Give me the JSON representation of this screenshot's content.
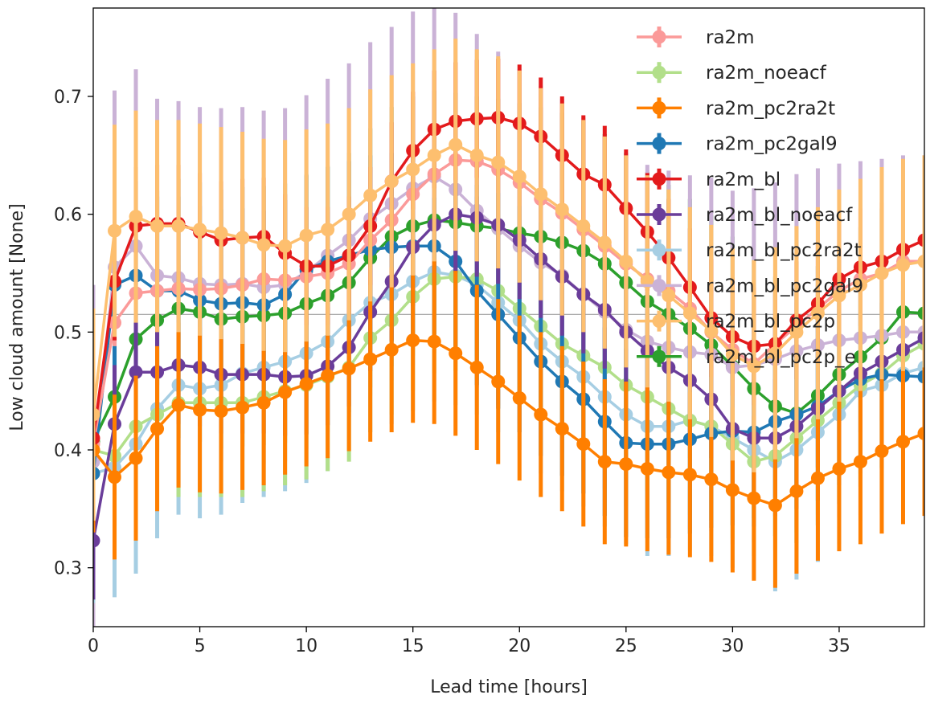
{
  "chart_data": {
    "type": "line",
    "title": "",
    "xlabel": "Lead time [hours]",
    "ylabel": "Low cloud amount [None]",
    "xlim": [
      0,
      39
    ],
    "ylim": [
      0.25,
      0.775
    ],
    "xticks": [
      0,
      5,
      10,
      15,
      20,
      25,
      30,
      35
    ],
    "yticks": [
      0.3,
      0.4,
      0.5,
      0.6,
      0.7
    ],
    "hline": 0.515,
    "grid": false,
    "legend_position": "top-right",
    "x": [
      0,
      1,
      2,
      3,
      4,
      5,
      6,
      7,
      8,
      9,
      10,
      11,
      12,
      13,
      14,
      15,
      16,
      17,
      18,
      19,
      20,
      21,
      22,
      23,
      24,
      25,
      26,
      27,
      28,
      29,
      30,
      31,
      32,
      33,
      34,
      35,
      36,
      37,
      38,
      39
    ],
    "series": [
      {
        "name": "ra2m_bl_pc2p_e",
        "color": "#2ca02c",
        "values": [
          0.407,
          0.445,
          0.494,
          0.51,
          0.52,
          0.517,
          0.511,
          0.513,
          0.514,
          0.516,
          0.524,
          0.531,
          0.542,
          0.563,
          0.581,
          0.59,
          0.595,
          0.593,
          0.59,
          0.588,
          0.584,
          0.581,
          0.576,
          0.569,
          0.558,
          0.542,
          0.526,
          0.515,
          0.503,
          0.489,
          0.471,
          0.452,
          0.437,
          0.431,
          0.446,
          0.464,
          0.479,
          0.495,
          0.517,
          0.516
        ],
        "err": 0.11
      },
      {
        "name": "ra2m_bl_pc2gal9",
        "color": "#cab2d6",
        "values": [
          0.39,
          0.555,
          0.573,
          0.548,
          0.546,
          0.541,
          0.54,
          0.541,
          0.538,
          0.54,
          0.551,
          0.565,
          0.578,
          0.596,
          0.609,
          0.622,
          0.632,
          0.621,
          0.603,
          0.588,
          0.573,
          0.559,
          0.548,
          0.532,
          0.517,
          0.502,
          0.492,
          0.487,
          0.483,
          0.481,
          0.47,
          0.472,
          0.477,
          0.484,
          0.489,
          0.493,
          0.495,
          0.497,
          0.5,
          0.5
        ],
        "err": 0.15
      },
      {
        "name": "ra2m_bl_pc2ra2t",
        "color": "#a6cee3",
        "values": [
          0.38,
          0.385,
          0.405,
          0.435,
          0.455,
          0.452,
          0.455,
          0.465,
          0.47,
          0.475,
          0.482,
          0.492,
          0.51,
          0.525,
          0.532,
          0.543,
          0.551,
          0.548,
          0.54,
          0.525,
          0.51,
          0.49,
          0.475,
          0.462,
          0.445,
          0.43,
          0.42,
          0.42,
          0.425,
          0.42,
          0.41,
          0.4,
          0.39,
          0.4,
          0.415,
          0.43,
          0.45,
          0.455,
          0.465,
          0.47
        ],
        "err": 0.11
      },
      {
        "name": "ra2m_noeacf",
        "color": "#b2df8a",
        "values": [
          0.4,
          0.395,
          0.42,
          0.43,
          0.44,
          0.44,
          0.44,
          0.44,
          0.445,
          0.45,
          0.455,
          0.462,
          0.47,
          0.495,
          0.51,
          0.53,
          0.545,
          0.547,
          0.545,
          0.535,
          0.52,
          0.505,
          0.49,
          0.48,
          0.47,
          0.455,
          0.445,
          0.435,
          0.425,
          0.42,
          0.405,
          0.39,
          0.395,
          0.41,
          0.425,
          0.44,
          0.455,
          0.465,
          0.48,
          0.49
        ],
        "err": 0.08
      },
      {
        "name": "ra2m_pc2gal9",
        "color": "#1f78b4",
        "values": [
          0.38,
          0.54,
          0.548,
          0.535,
          0.535,
          0.527,
          0.524,
          0.525,
          0.523,
          0.532,
          0.553,
          0.56,
          0.565,
          0.57,
          0.572,
          0.573,
          0.573,
          0.56,
          0.535,
          0.515,
          0.495,
          0.475,
          0.458,
          0.443,
          0.424,
          0.406,
          0.405,
          0.405,
          0.409,
          0.414,
          0.416,
          0.415,
          0.424,
          0.43,
          0.437,
          0.45,
          0.46,
          0.464,
          0.463,
          0.462
        ],
        "err": 0.08
      },
      {
        "name": "ra2m_bl_noeacf",
        "color": "#6a3d9a",
        "values": [
          0.323,
          0.422,
          0.466,
          0.466,
          0.472,
          0.47,
          0.464,
          0.464,
          0.464,
          0.462,
          0.463,
          0.471,
          0.487,
          0.517,
          0.543,
          0.572,
          0.591,
          0.6,
          0.597,
          0.591,
          0.578,
          0.562,
          0.547,
          0.532,
          0.519,
          0.5,
          0.484,
          0.47,
          0.459,
          0.443,
          0.418,
          0.41,
          0.41,
          0.42,
          0.435,
          0.45,
          0.465,
          0.475,
          0.485,
          0.495
        ],
        "err": 0.05
      },
      {
        "name": "ra2m",
        "color": "#fb9a99",
        "values": [
          0.405,
          0.508,
          0.533,
          0.535,
          0.537,
          0.536,
          0.537,
          0.54,
          0.545,
          0.544,
          0.547,
          0.55,
          0.558,
          0.578,
          0.595,
          0.617,
          0.634,
          0.646,
          0.645,
          0.638,
          0.627,
          0.613,
          0.601,
          0.587,
          0.573,
          0.558,
          0.545,
          0.535,
          0.52,
          0.5,
          0.485,
          0.473,
          0.49,
          0.505,
          0.52,
          0.535,
          0.545,
          0.55,
          0.56,
          0.56
        ],
        "err": 0.02
      },
      {
        "name": "ra2m_pc2ra2t",
        "color": "#ff7f00",
        "values": [
          0.4,
          0.377,
          0.393,
          0.418,
          0.438,
          0.434,
          0.433,
          0.436,
          0.44,
          0.449,
          0.456,
          0.463,
          0.469,
          0.477,
          0.485,
          0.493,
          0.492,
          0.482,
          0.47,
          0.458,
          0.444,
          0.43,
          0.418,
          0.405,
          0.39,
          0.388,
          0.384,
          0.381,
          0.379,
          0.375,
          0.366,
          0.359,
          0.353,
          0.365,
          0.376,
          0.384,
          0.39,
          0.399,
          0.407,
          0.414
        ],
        "err": 0.07
      },
      {
        "name": "ra2m_bl",
        "color": "#e31a1c",
        "values": [
          0.41,
          0.543,
          0.59,
          0.592,
          0.592,
          0.585,
          0.578,
          0.58,
          0.581,
          0.567,
          0.556,
          0.556,
          0.565,
          0.59,
          0.628,
          0.654,
          0.672,
          0.679,
          0.681,
          0.682,
          0.677,
          0.666,
          0.65,
          0.634,
          0.625,
          0.605,
          0.585,
          0.563,
          0.538,
          0.512,
          0.496,
          0.488,
          0.49,
          0.51,
          0.524,
          0.545,
          0.555,
          0.56,
          0.57,
          0.578
        ],
        "err": 0.05
      },
      {
        "name": "ra2m_bl_pc2p",
        "color": "#fdbf6f",
        "values": [
          0.43,
          0.586,
          0.598,
          0.59,
          0.59,
          0.587,
          0.584,
          0.58,
          0.574,
          0.573,
          0.582,
          0.587,
          0.6,
          0.616,
          0.628,
          0.638,
          0.65,
          0.659,
          0.65,
          0.644,
          0.632,
          0.617,
          0.604,
          0.59,
          0.576,
          0.56,
          0.543,
          0.531,
          0.516,
          0.501,
          0.481,
          0.471,
          0.482,
          0.5,
          0.516,
          0.531,
          0.54,
          0.55,
          0.557,
          0.56
        ],
        "err": 0.09
      }
    ],
    "legend_order": [
      "ra2m",
      "ra2m_noeacf",
      "ra2m_pc2ra2t",
      "ra2m_pc2gal9",
      "ra2m_bl",
      "ra2m_bl_noeacf",
      "ra2m_bl_pc2ra2t",
      "ra2m_bl_pc2gal9",
      "ra2m_bl_pc2p",
      "ra2m_bl_pc2p_e"
    ]
  }
}
